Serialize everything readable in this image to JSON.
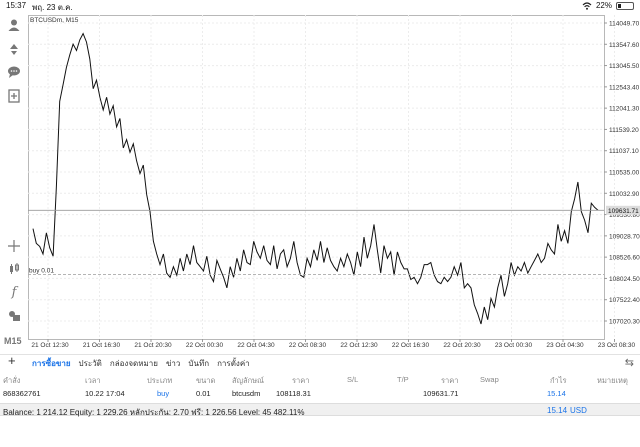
{
  "status_bar": {
    "time": "15:37",
    "date": "พฤ. 23 ต.ค.",
    "battery": "22%"
  },
  "toolbar": {
    "icons": [
      "user-icon",
      "swap-icon",
      "chat-icon",
      "new-order-icon",
      "crosshair-icon",
      "candles-icon",
      "function-icon",
      "objects-icon"
    ],
    "timeframe": "M15"
  },
  "chart_data": {
    "type": "line",
    "title": "BTCUSDm, M15",
    "symbol": "BTCUSDm",
    "timeframe": "M15",
    "current_price": "109631.71",
    "position_label": "buy 0.01",
    "position_price": 108118.31,
    "y_ticks": [
      "114049.70",
      "113547.60",
      "113045.50",
      "112543.40",
      "112041.30",
      "111539.20",
      "111037.10",
      "110535.00",
      "110032.90",
      "109530.80",
      "109028.70",
      "108526.60",
      "108024.50",
      "107522.40",
      "107020.30"
    ],
    "x_ticks": [
      "21 Oct 12:30",
      "21 Oct 16:30",
      "21 Oct 20:30",
      "22 Oct 00:30",
      "22 Oct 04:30",
      "22 Oct 08:30",
      "22 Oct 12:30",
      "22 Oct 16:30",
      "22 Oct 20:30",
      "23 Oct 00:30",
      "23 Oct 04:30",
      "23 Oct 08:30"
    ],
    "ylim": [
      106900,
      114200
    ],
    "grid": true,
    "values": [
      109200,
      108850,
      108780,
      108600,
      109100,
      108750,
      108550,
      110200,
      112200,
      112600,
      113000,
      113300,
      113550,
      113400,
      113650,
      113800,
      113600,
      113200,
      112500,
      112700,
      112300,
      112000,
      112300,
      111900,
      112100,
      111600,
      111800,
      111100,
      111300,
      111000,
      111200,
      110800,
      110500,
      110700,
      110000,
      109600,
      108900,
      108600,
      108350,
      108600,
      108150,
      108050,
      108300,
      108100,
      108500,
      108200,
      108600,
      108350,
      108800,
      108400,
      108300,
      108200,
      108550,
      108100,
      107950,
      108450,
      108250,
      108050,
      107800,
      108300,
      108050,
      108500,
      108200,
      108700,
      108400,
      108350,
      108900,
      108650,
      108500,
      108800,
      108450,
      108350,
      108800,
      108250,
      108600,
      108700,
      108300,
      108500,
      108900,
      108400,
      108100,
      108050,
      108500,
      108300,
      108700,
      108450,
      108900,
      108400,
      108750,
      108450,
      108300,
      108200,
      108500,
      108300,
      108600,
      108400,
      108100,
      108650,
      108300,
      109000,
      108500,
      108800,
      109300,
      108700,
      108150,
      108800,
      108500,
      108650,
      108100,
      108650,
      108400,
      108250,
      108250,
      108000,
      108050,
      107900,
      108050,
      108350,
      108350,
      108400,
      108100,
      107950,
      107900,
      108050,
      107950,
      108050,
      108300,
      108100,
      108400,
      107800,
      107900,
      107800,
      107400,
      107200,
      106950,
      107350,
      107050,
      107550,
      107350,
      107800,
      108100,
      107600,
      107900,
      108400,
      108100,
      108300,
      108200,
      108400,
      108150,
      108300,
      108450,
      108600,
      108400,
      108500,
      108850,
      108700,
      108600,
      109300,
      108900,
      109150,
      108850,
      109600,
      109900,
      110300,
      109600,
      109400,
      109100,
      109800,
      109700,
      109631
    ]
  },
  "tabs": {
    "add_label": "+",
    "items": [
      "การซื้อขาย",
      "ประวัติ",
      "กล่องจดหมาย",
      "ข่าว",
      "บันทึก",
      "การตั้งค่า"
    ]
  },
  "table": {
    "columns": [
      "คำสั่ง",
      "เวลา",
      "ประเภท",
      "ขนาด",
      "สัญลักษณ์",
      "ราคา",
      "S/L",
      "T/P",
      "ราคา",
      "Swap",
      "กำไร",
      "หมายเหตุ"
    ],
    "row": {
      "order": "868362761",
      "time": "10.22 17:04",
      "type": "buy",
      "volume": "0.01",
      "symbol": "btcusdm",
      "open_price": "108118.31",
      "sl": "",
      "tp": "",
      "current_price": "109631.71",
      "swap": "",
      "profit": "15.14",
      "comment": ""
    }
  },
  "balance": {
    "text": "Balance: 1 214.12 Equity: 1 229.26 หลักประกัน: 2.70 ฟรี: 1 226.56 Level: 45 482.11%",
    "profit": "15.14",
    "currency": "USD"
  }
}
